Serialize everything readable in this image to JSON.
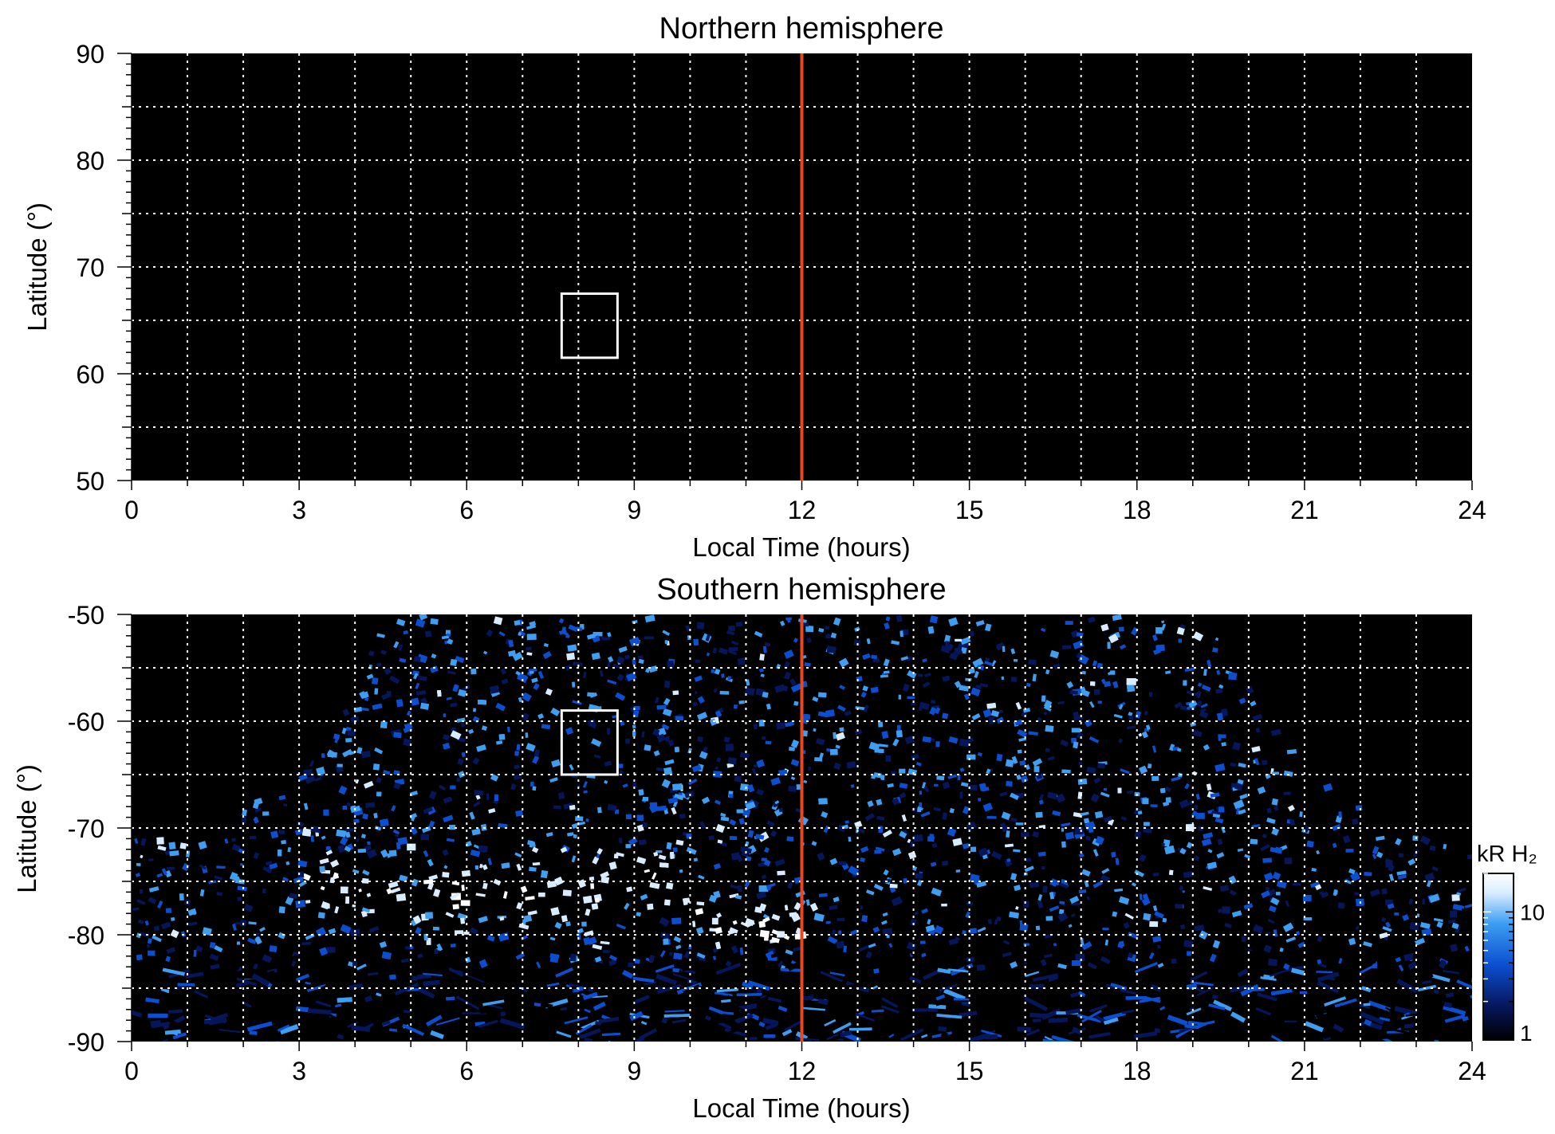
{
  "chart_data": [
    {
      "type": "heatmap",
      "title": "Northern hemisphere",
      "xlabel": "Local Time (hours)",
      "ylabel": "Latitude (°)",
      "xlim": [
        0,
        24
      ],
      "ylim": [
        50,
        90
      ],
      "x_ticks": [
        "0",
        "3",
        "6",
        "9",
        "12",
        "15",
        "18",
        "21",
        "24"
      ],
      "y_ticks": [
        "50",
        "60",
        "70",
        "80",
        "90"
      ],
      "grid": true,
      "reference_line": {
        "x": 12,
        "color": "#e8471f"
      },
      "box": {
        "x": [
          7.7,
          8.7
        ],
        "y": [
          61.5,
          67.5
        ]
      },
      "emission": "none"
    },
    {
      "type": "heatmap",
      "title": "Southern hemisphere",
      "xlabel": "Local Time (hours)",
      "ylabel": "Latitude (°)",
      "xlim": [
        0,
        24
      ],
      "ylim": [
        -90,
        -50
      ],
      "x_ticks": [
        "0",
        "3",
        "6",
        "9",
        "12",
        "15",
        "18",
        "21",
        "24"
      ],
      "y_ticks": [
        "-50",
        "-60",
        "-70",
        "-80",
        "-90"
      ],
      "grid": true,
      "reference_line": {
        "x": 12,
        "color": "#e8471f"
      },
      "box": {
        "x": [
          7.7,
          8.7
        ],
        "y": [
          -65,
          -59
        ]
      },
      "coverage_boundary": {
        "lt": [
          0,
          1,
          2,
          3,
          3.5,
          4,
          4.5,
          6,
          8,
          10,
          12,
          14,
          16,
          18,
          19.3,
          19.7,
          20.5,
          21,
          22,
          23,
          24
        ],
        "lat": [
          -71,
          -69.5,
          -67.5,
          -65,
          -61.5,
          -57,
          -50,
          -50,
          -50,
          -50,
          -50,
          -50,
          -50,
          -50,
          -50,
          -54,
          -61.5,
          -64.5,
          -68,
          -70,
          -71
        ]
      },
      "auroral_oval": {
        "lt": [
          3,
          4,
          5,
          6,
          7,
          8,
          9,
          9.5,
          10.5,
          11.5,
          12.3
        ],
        "lat": [
          -74.5,
          -75.5,
          -76,
          -76.2,
          -76,
          -75.7,
          -75.2,
          -74.5,
          -78.5,
          -79.5,
          -80
        ]
      },
      "colorbar": {
        "label": "kR H₂",
        "ticks": [
          "1",
          "10"
        ],
        "range": [
          1,
          20
        ],
        "scale": "log",
        "colors": [
          "#000000",
          "#06165a",
          "#0b4fd0",
          "#3d9ef2",
          "#d7ecff",
          "#ffffff"
        ]
      }
    }
  ]
}
